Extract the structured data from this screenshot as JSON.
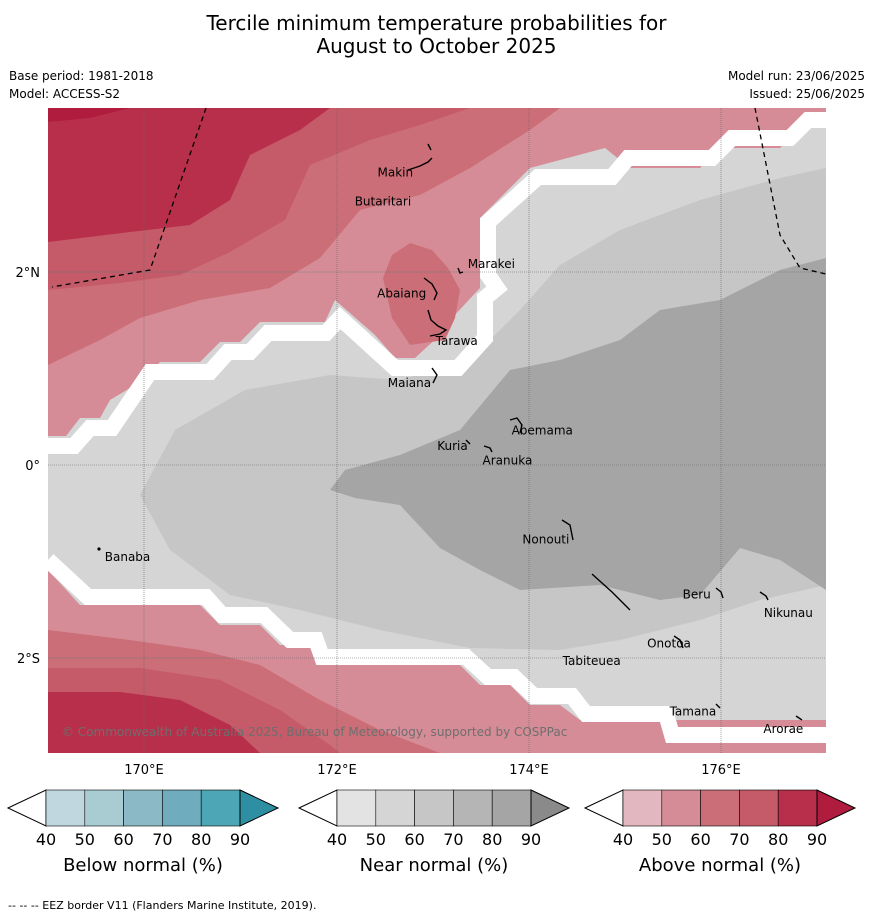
{
  "title_line1": "Tercile minimum temperature probabilities for",
  "title_line2": "August to October 2025",
  "base_period": "Base period: 1981-2018",
  "model": "Model: ACCESS-S2",
  "model_run": "Model run: 23/06/2025",
  "issued": "Issued: 25/06/2025",
  "copyright": "© Commonwealth of Australia 2025, Bureau of Meteorology, supported by COSPPac",
  "axes": {
    "x_ticks": [
      "170°E",
      "172°E",
      "174°E",
      "176°E"
    ],
    "y_ticks": [
      "2°N",
      "0°",
      "2°S"
    ]
  },
  "places": [
    {
      "name": "Makin",
      "lon": 172.8,
      "lat": 3.05
    },
    {
      "name": "Butaritari",
      "lon": 172.75,
      "lat": 3.03
    },
    {
      "name": "Marakei",
      "lon": 173.28,
      "lat": 2.0
    },
    {
      "name": "Abaiang",
      "lon": 172.9,
      "lat": 1.85
    },
    {
      "name": "Tarawa",
      "lon": 173.03,
      "lat": 1.4
    },
    {
      "name": "Maiana",
      "lon": 173.0,
      "lat": 0.9
    },
    {
      "name": "Abemama",
      "lon": 173.85,
      "lat": 0.4
    },
    {
      "name": "Kuria",
      "lon": 173.4,
      "lat": 0.22
    },
    {
      "name": "Aranuka",
      "lon": 173.6,
      "lat": 0.17
    },
    {
      "name": "Banaba",
      "lon": 169.53,
      "lat": -0.86
    },
    {
      "name": "Nonouti",
      "lon": 174.42,
      "lat": -0.67
    },
    {
      "name": "Tabiteuea",
      "lon": 174.9,
      "lat": -1.4
    },
    {
      "name": "Beru",
      "lon": 175.97,
      "lat": -1.33
    },
    {
      "name": "Nikunau",
      "lon": 176.45,
      "lat": -1.37
    },
    {
      "name": "Onotoa",
      "lon": 175.57,
      "lat": -1.8
    },
    {
      "name": "Tamana",
      "lon": 175.98,
      "lat": -2.5
    },
    {
      "name": "Arorae",
      "lon": 176.82,
      "lat": -2.64
    }
  ],
  "legends": [
    {
      "label": "Below normal (%)",
      "ticks": [
        "40",
        "50",
        "60",
        "70",
        "80",
        "90"
      ],
      "colors": [
        "#c0d7df",
        "#a9ccd3",
        "#8bbac6",
        "#6fadbe",
        "#4da6b5",
        "#2e8fa3"
      ]
    },
    {
      "label": "Near normal (%)",
      "ticks": [
        "40",
        "50",
        "60",
        "70",
        "80",
        "90"
      ],
      "colors": [
        "#e3e3e3",
        "#d5d5d5",
        "#c6c6c6",
        "#b5b5b5",
        "#a5a5a5",
        "#8a8a8a"
      ]
    },
    {
      "label": "Above normal (%)",
      "ticks": [
        "40",
        "50",
        "60",
        "70",
        "80",
        "90"
      ],
      "colors": [
        "#e2b7bf",
        "#d68c96",
        "#cb6e78",
        "#c55a68",
        "#b82f4b",
        "#b01c3e"
      ]
    }
  ],
  "footer": "--  --  -- EEZ border V11 (Flanders Marine Institute, 2019)."
}
